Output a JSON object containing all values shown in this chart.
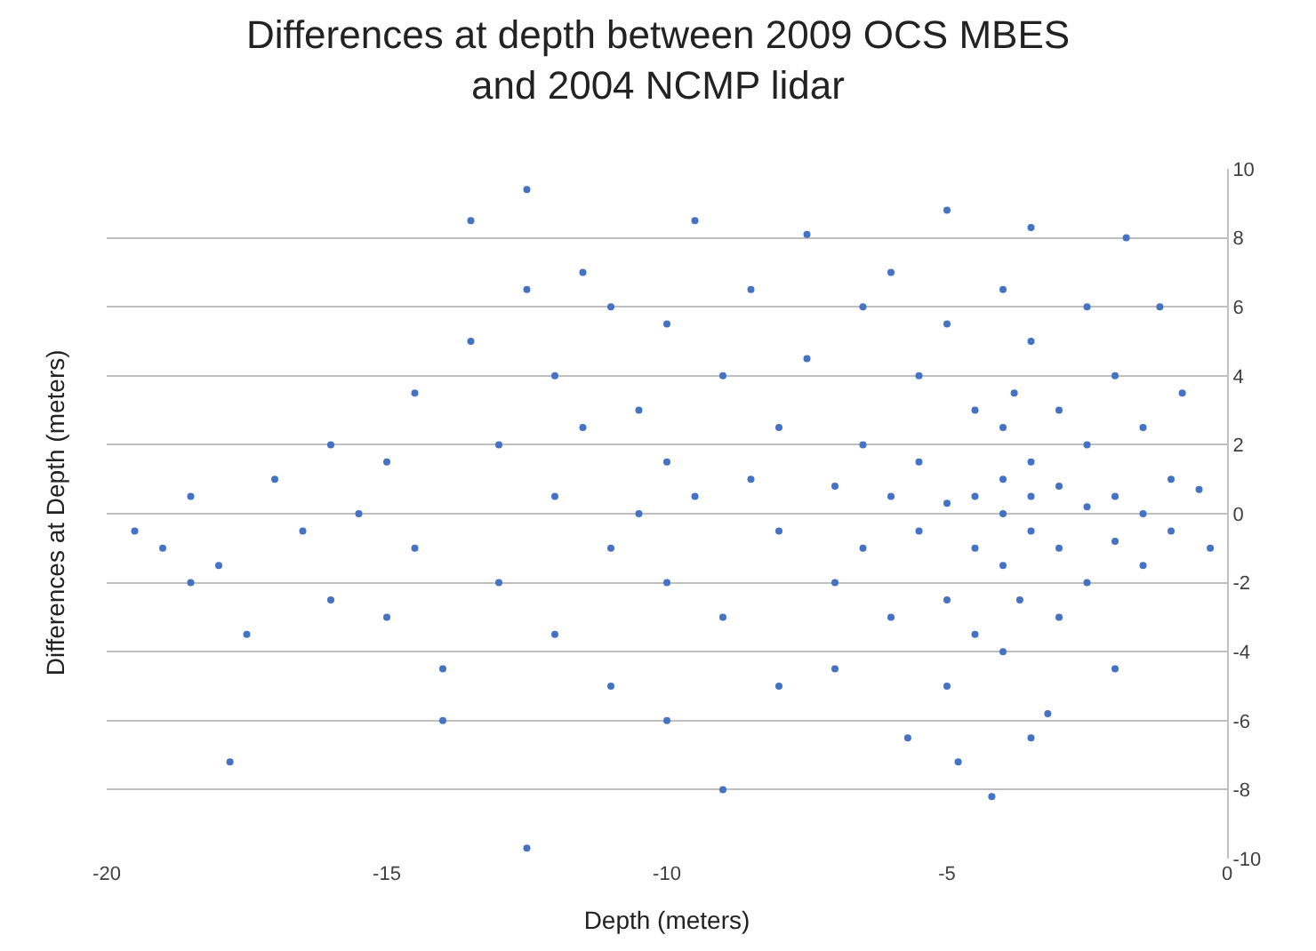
{
  "chart_data": {
    "type": "scatter",
    "title": "Differences at depth between 2009 OCS MBES and 2004 NCMP lidar",
    "xlabel": "Depth (meters)",
    "ylabel": "Differences at Depth (meters)",
    "x": [
      -19.5,
      -19,
      -18.5,
      -18,
      -18.5,
      -17.5,
      -17.8,
      -17,
      -16.5,
      -16,
      -16,
      -15.5,
      -15,
      -15,
      -14.5,
      -14.5,
      -14,
      -14,
      -13.5,
      -13.5,
      -13,
      -13,
      -12.5,
      -12.5,
      -12.5,
      -12,
      -12,
      -12,
      -11.5,
      -11.5,
      -11,
      -11,
      -11,
      -10.5,
      -10.5,
      -10,
      -10,
      -10,
      -10,
      -9.5,
      -9.5,
      -9,
      -9,
      -9,
      -8.5,
      -8.5,
      -8,
      -8,
      -8,
      -7.5,
      -7.5,
      -7,
      -7,
      -7,
      -6.5,
      -6.5,
      -6.5,
      -6,
      -6,
      -6,
      -5.7,
      -5.5,
      -5.5,
      -5.5,
      -5,
      -5,
      -5,
      -5,
      -5,
      -4.8,
      -4.5,
      -4.5,
      -4.5,
      -4.5,
      -4.2,
      -4,
      -4,
      -4,
      -4,
      -4,
      -4,
      -3.8,
      -3.7,
      -3.5,
      -3.5,
      -3.5,
      -3.5,
      -3.5,
      -3.5,
      -3.2,
      -3,
      -3,
      -3,
      -3,
      -2.5,
      -2.5,
      -2.5,
      -2.5,
      -2,
      -2,
      -2,
      -2,
      -1.8,
      -1.5,
      -1.5,
      -1.5,
      -1.2,
      -1,
      -1,
      -0.8,
      -0.5,
      -0.3
    ],
    "values": [
      -0.5,
      -1,
      0.5,
      -1.5,
      -2,
      -3.5,
      -7.2,
      1,
      -0.5,
      2,
      -2.5,
      0,
      1.5,
      -3,
      3.5,
      -1,
      -4.5,
      -6,
      5,
      8.5,
      2,
      -2,
      9.4,
      6.5,
      -9.7,
      4,
      0.5,
      -3.5,
      7,
      2.5,
      6,
      -1,
      -5,
      3,
      0,
      5.5,
      1.5,
      -2,
      -6,
      8.5,
      0.5,
      4,
      -3,
      -8,
      6.5,
      1,
      2.5,
      -0.5,
      -5,
      8.1,
      4.5,
      0.8,
      -2,
      -4.5,
      6,
      2,
      -1,
      7,
      0.5,
      -3,
      -6.5,
      4,
      1.5,
      -0.5,
      8.8,
      5.5,
      0.3,
      -2.5,
      -5,
      -7.2,
      3,
      0.5,
      -1,
      -3.5,
      -8.2,
      6.5,
      2.5,
      1,
      0,
      -1.5,
      -4,
      3.5,
      -2.5,
      8.3,
      5,
      1.5,
      0.5,
      -0.5,
      -6.5,
      -5.8,
      3,
      0.8,
      -1,
      -3,
      6,
      2,
      0.2,
      -2,
      4,
      0.5,
      -0.8,
      -4.5,
      8,
      2.5,
      0,
      -1.5,
      6,
      1,
      -0.5,
      3.5,
      0.7,
      -1
    ],
    "color": "#4472c4",
    "marker": "circle",
    "xlim": [
      -20,
      0
    ],
    "xticks": [
      -20,
      -15,
      -10,
      -5,
      0
    ],
    "ylim": [
      -10,
      10
    ],
    "yticks": [
      -10,
      -8,
      -6,
      -4,
      -2,
      0,
      2,
      4,
      6,
      8,
      10
    ],
    "grid": "y"
  }
}
